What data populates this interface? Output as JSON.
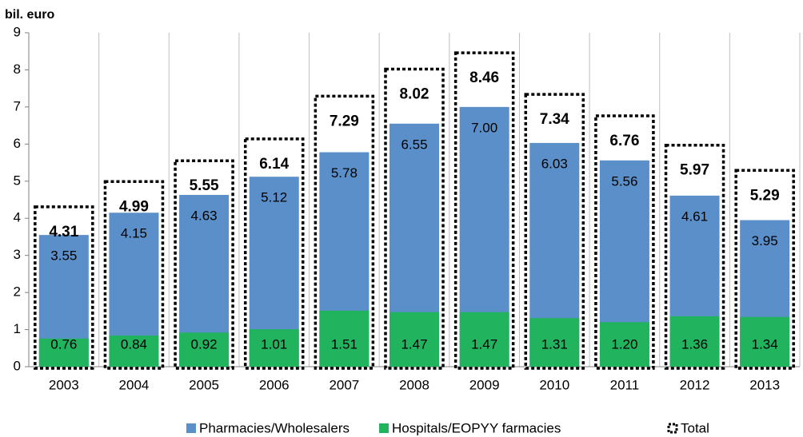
{
  "chart_data": {
    "type": "bar",
    "ylabel": "bil. euro",
    "categories": [
      "2003",
      "2004",
      "2005",
      "2006",
      "2007",
      "2008",
      "2009",
      "2010",
      "2011",
      "2012",
      "2013"
    ],
    "series": [
      {
        "name": "Pharmacies/Wholesalers",
        "color": "#5b8fc9",
        "values": [
          3.55,
          4.15,
          4.63,
          5.12,
          5.78,
          6.55,
          7.0,
          6.03,
          5.56,
          4.61,
          3.95
        ],
        "value_labels": [
          "3.55",
          "4.15",
          "4.63",
          "5.12",
          "5.78",
          "6.55",
          "7.00",
          "6.03",
          "5.56",
          "4.61",
          "3.95"
        ]
      },
      {
        "name": "Hospitals/EOPYY farmacies",
        "color": "#22b35e",
        "values": [
          0.76,
          0.84,
          0.92,
          1.01,
          1.51,
          1.47,
          1.47,
          1.31,
          1.2,
          1.36,
          1.34
        ],
        "value_labels": [
          "0.76",
          "0.84",
          "0.92",
          "1.01",
          "1.51",
          "1.47",
          "1.47",
          "1.31",
          "1.20",
          "1.36",
          "1.34"
        ]
      },
      {
        "name": "Total",
        "color": "#000000",
        "values": [
          4.31,
          4.99,
          5.55,
          6.14,
          7.29,
          8.02,
          8.46,
          7.34,
          6.76,
          5.97,
          5.29
        ]
      }
    ],
    "ylim": [
      0,
      9
    ],
    "yticks": [
      0,
      1,
      2,
      3,
      4,
      5,
      6,
      7,
      8,
      9
    ]
  }
}
